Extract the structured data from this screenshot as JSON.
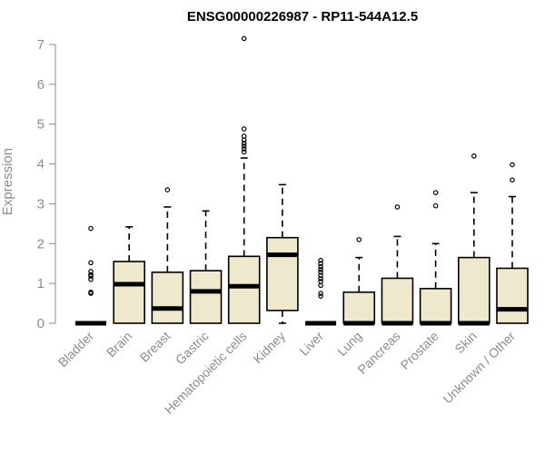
{
  "chart_data": {
    "type": "boxplot",
    "title": "ENSG00000226987 - RP11-544A12.5",
    "xlabel": "",
    "ylabel": "Expression",
    "ylim": [
      0,
      7
    ],
    "yticks": [
      0,
      1,
      2,
      3,
      4,
      5,
      6,
      7
    ],
    "grid": false,
    "legend": "none",
    "box_fill": "#eee8cd",
    "stroke_color": "#000000",
    "label_color": "#8c8c8c",
    "categories": [
      "Bladder",
      "Brain",
      "Breast",
      "Gastric",
      "Hematopoietic cells",
      "Kidney",
      "Liver",
      "Lung",
      "Pancreas",
      "Prostate",
      "Skin",
      "Unknown / Other"
    ],
    "boxes": [
      {
        "category": "Bladder",
        "whisker_low": 0,
        "q1": 0,
        "median": 0,
        "q3": 0,
        "whisker_high": 0,
        "outliers": [
          0.75,
          0.78,
          1.1,
          1.18,
          1.22,
          1.3,
          1.52,
          2.38
        ]
      },
      {
        "category": "Brain",
        "whisker_low": 0,
        "q1": 0,
        "median": 0.98,
        "q3": 1.55,
        "whisker_high": 2.42,
        "outliers": []
      },
      {
        "category": "Breast",
        "whisker_low": 0,
        "q1": 0,
        "median": 0.37,
        "q3": 1.28,
        "whisker_high": 2.92,
        "outliers": [
          3.35
        ]
      },
      {
        "category": "Gastric",
        "whisker_low": 0,
        "q1": 0,
        "median": 0.8,
        "q3": 1.32,
        "whisker_high": 2.82,
        "outliers": []
      },
      {
        "category": "Hematopoietic cells",
        "whisker_low": 0,
        "q1": 0,
        "median": 0.93,
        "q3": 1.68,
        "whisker_high": 4.15,
        "outliers": [
          4.3,
          4.38,
          4.45,
          4.52,
          4.6,
          4.7,
          4.88,
          7.15
        ]
      },
      {
        "category": "Kidney",
        "whisker_low": 0,
        "q1": 0.32,
        "median": 1.72,
        "q3": 2.15,
        "whisker_high": 3.48,
        "outliers": []
      },
      {
        "category": "Liver",
        "whisker_low": 0,
        "q1": 0,
        "median": 0,
        "q3": 0,
        "whisker_high": 0,
        "outliers": [
          0.68,
          0.75,
          0.95,
          1.05,
          1.12,
          1.2,
          1.28,
          1.35,
          1.42,
          1.5,
          1.58
        ]
      },
      {
        "category": "Lung",
        "whisker_low": 0,
        "q1": 0,
        "median": 0,
        "q3": 0.78,
        "whisker_high": 1.65,
        "outliers": [
          2.1
        ]
      },
      {
        "category": "Pancreas",
        "whisker_low": 0,
        "q1": 0,
        "median": 0,
        "q3": 1.13,
        "whisker_high": 2.18,
        "outliers": [
          2.92
        ]
      },
      {
        "category": "Prostate",
        "whisker_low": 0,
        "q1": 0,
        "median": 0,
        "q3": 0.87,
        "whisker_high": 2.0,
        "outliers": [
          2.95,
          3.28
        ]
      },
      {
        "category": "Skin",
        "whisker_low": 0,
        "q1": 0,
        "median": 0,
        "q3": 1.65,
        "whisker_high": 3.28,
        "outliers": [
          4.2
        ]
      },
      {
        "category": "Unknown / Other",
        "whisker_low": 0,
        "q1": 0,
        "median": 0.35,
        "q3": 1.38,
        "whisker_high": 3.18,
        "outliers": [
          3.6,
          3.98
        ]
      }
    ]
  }
}
